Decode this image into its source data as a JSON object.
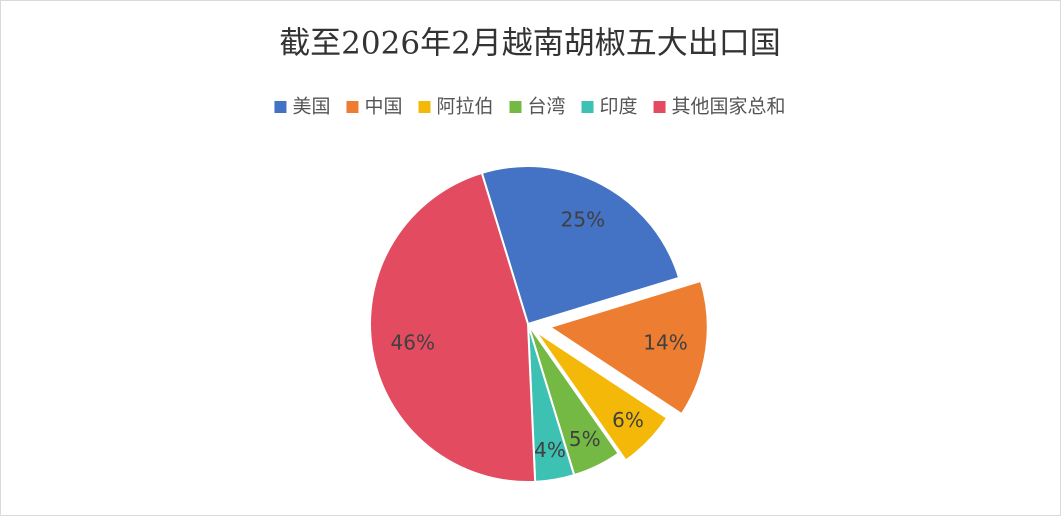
{
  "chart_data": {
    "type": "pie",
    "title": "截至2026年2月越南胡椒五大出口国",
    "categories": [
      "美国",
      "中国",
      "阿拉伯",
      "台湾",
      "印度",
      "其他国家总和"
    ],
    "values": [
      25,
      14,
      6,
      5,
      4,
      46
    ],
    "value_labels": [
      "25%",
      "14%",
      "6%",
      "5%",
      "4%",
      "46%"
    ],
    "colors": [
      "#4472c4",
      "#ed7d31",
      "#f4b908",
      "#74b944",
      "#3cc1b3",
      "#e24b60"
    ],
    "legend": "top"
  }
}
